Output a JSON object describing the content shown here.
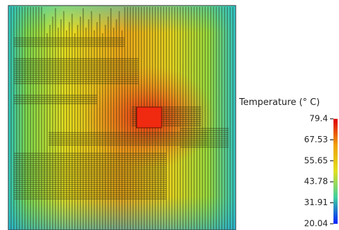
{
  "colorbar": {
    "title": "Temperature (° C)",
    "ticks": [
      79.4,
      67.53,
      55.65,
      43.78,
      31.91,
      20.04
    ]
  }
}
